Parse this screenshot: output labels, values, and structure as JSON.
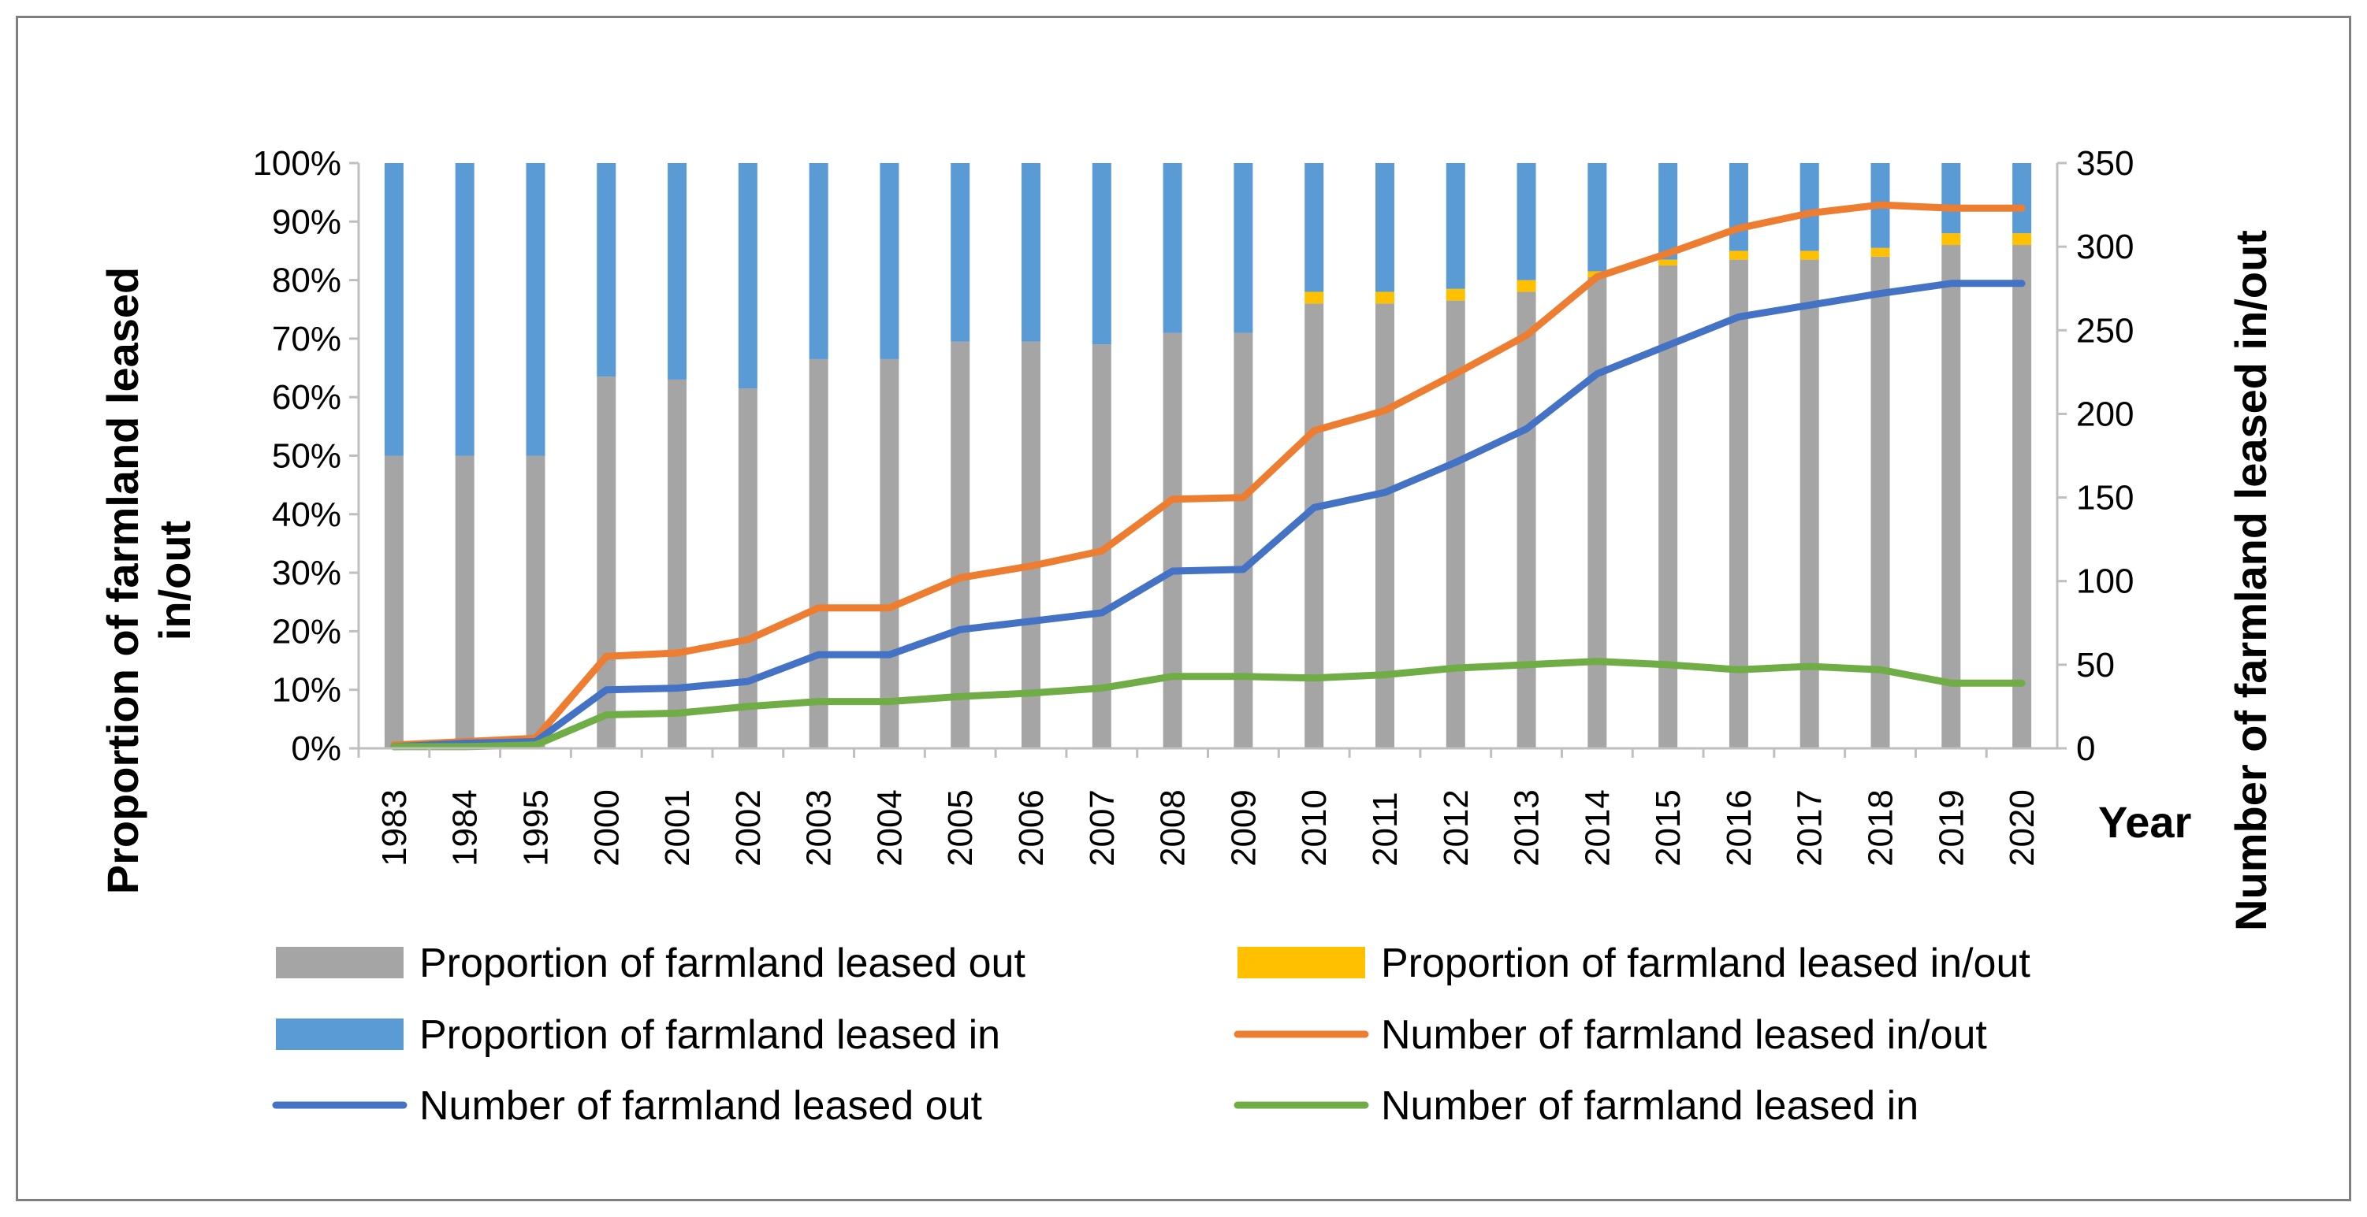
{
  "chart_data": {
    "type": "bar",
    "categories": [
      "1983",
      "1984",
      "1995",
      "2000",
      "2001",
      "2002",
      "2003",
      "2004",
      "2005",
      "2006",
      "2007",
      "2008",
      "2009",
      "2010",
      "2011",
      "2012",
      "2013",
      "2014",
      "2015",
      "2016",
      "2017",
      "2018",
      "2019",
      "2020"
    ],
    "y_left_label": "Proportion of farmland leased in/out",
    "y_right_label": "Number of farmland leased in/out",
    "x_label": "Year",
    "y_left_ticks": [
      "0%",
      "10%",
      "20%",
      "30%",
      "40%",
      "50%",
      "60%",
      "70%",
      "80%",
      "90%",
      "100%"
    ],
    "y_right_ticks": [
      "0",
      "50",
      "100",
      "150",
      "200",
      "250",
      "300",
      "350"
    ],
    "y_left_range": [
      0,
      100
    ],
    "y_right_range": [
      0,
      350
    ],
    "grid": false,
    "legend_position": "bottom",
    "bar_series": [
      {
        "name": "Proportion of farmland leased out",
        "color": "#a5a5a5",
        "values": [
          50,
          50,
          50,
          63.5,
          63,
          61.5,
          66.5,
          66.5,
          69.5,
          69.5,
          69,
          71,
          71,
          76,
          76,
          76.5,
          78,
          80.5,
          82.5,
          83.5,
          83.5,
          84,
          86,
          86
        ]
      },
      {
        "name": "Proportion of farmland leased in/out",
        "color": "#ffc000",
        "values": [
          0,
          0,
          0,
          0,
          0,
          0,
          0,
          0,
          0,
          0,
          0,
          0,
          0,
          2,
          2,
          2,
          2,
          1,
          1,
          1.5,
          1.5,
          1.5,
          2,
          2
        ]
      },
      {
        "name": "Proportion of farmland leased in",
        "color": "#5b9bd5",
        "values": [
          50,
          50,
          50,
          36.5,
          37,
          38.5,
          33.5,
          33.5,
          30.5,
          30.5,
          31,
          29,
          29,
          22,
          22,
          21.5,
          20,
          18.5,
          16.5,
          15,
          15,
          14.5,
          12,
          12
        ]
      }
    ],
    "line_series": [
      {
        "name": "Number of farmland leased in/out",
        "color": "#ed7d31",
        "values": [
          2,
          4,
          6,
          55,
          57,
          65,
          84,
          84,
          102,
          109,
          118,
          149,
          150,
          190,
          202,
          224,
          247,
          282,
          296,
          311,
          320,
          325,
          323,
          323
        ]
      },
      {
        "name": "Number of farmland leased out",
        "color": "#4472c4",
        "values": [
          1,
          3,
          4,
          35,
          36,
          40,
          56,
          56,
          71,
          76,
          81,
          106,
          107,
          144,
          153,
          171,
          191,
          224,
          241,
          258,
          265,
          272,
          278,
          278
        ]
      },
      {
        "name": "Number of farmland leased in",
        "color": "#70ad47",
        "values": [
          1,
          1,
          2,
          20,
          21,
          25,
          28,
          28,
          31,
          33,
          36,
          43,
          43,
          42,
          44,
          48,
          50,
          52,
          50,
          47,
          49,
          47,
          39,
          39
        ]
      }
    ],
    "legend_order": [
      "Proportion of farmland leased out",
      "Proportion of farmland leased in/out",
      "Proportion of farmland leased in",
      "Number of farmland leased in/out",
      "Number of farmland leased out",
      "Number of farmland leased in"
    ]
  }
}
